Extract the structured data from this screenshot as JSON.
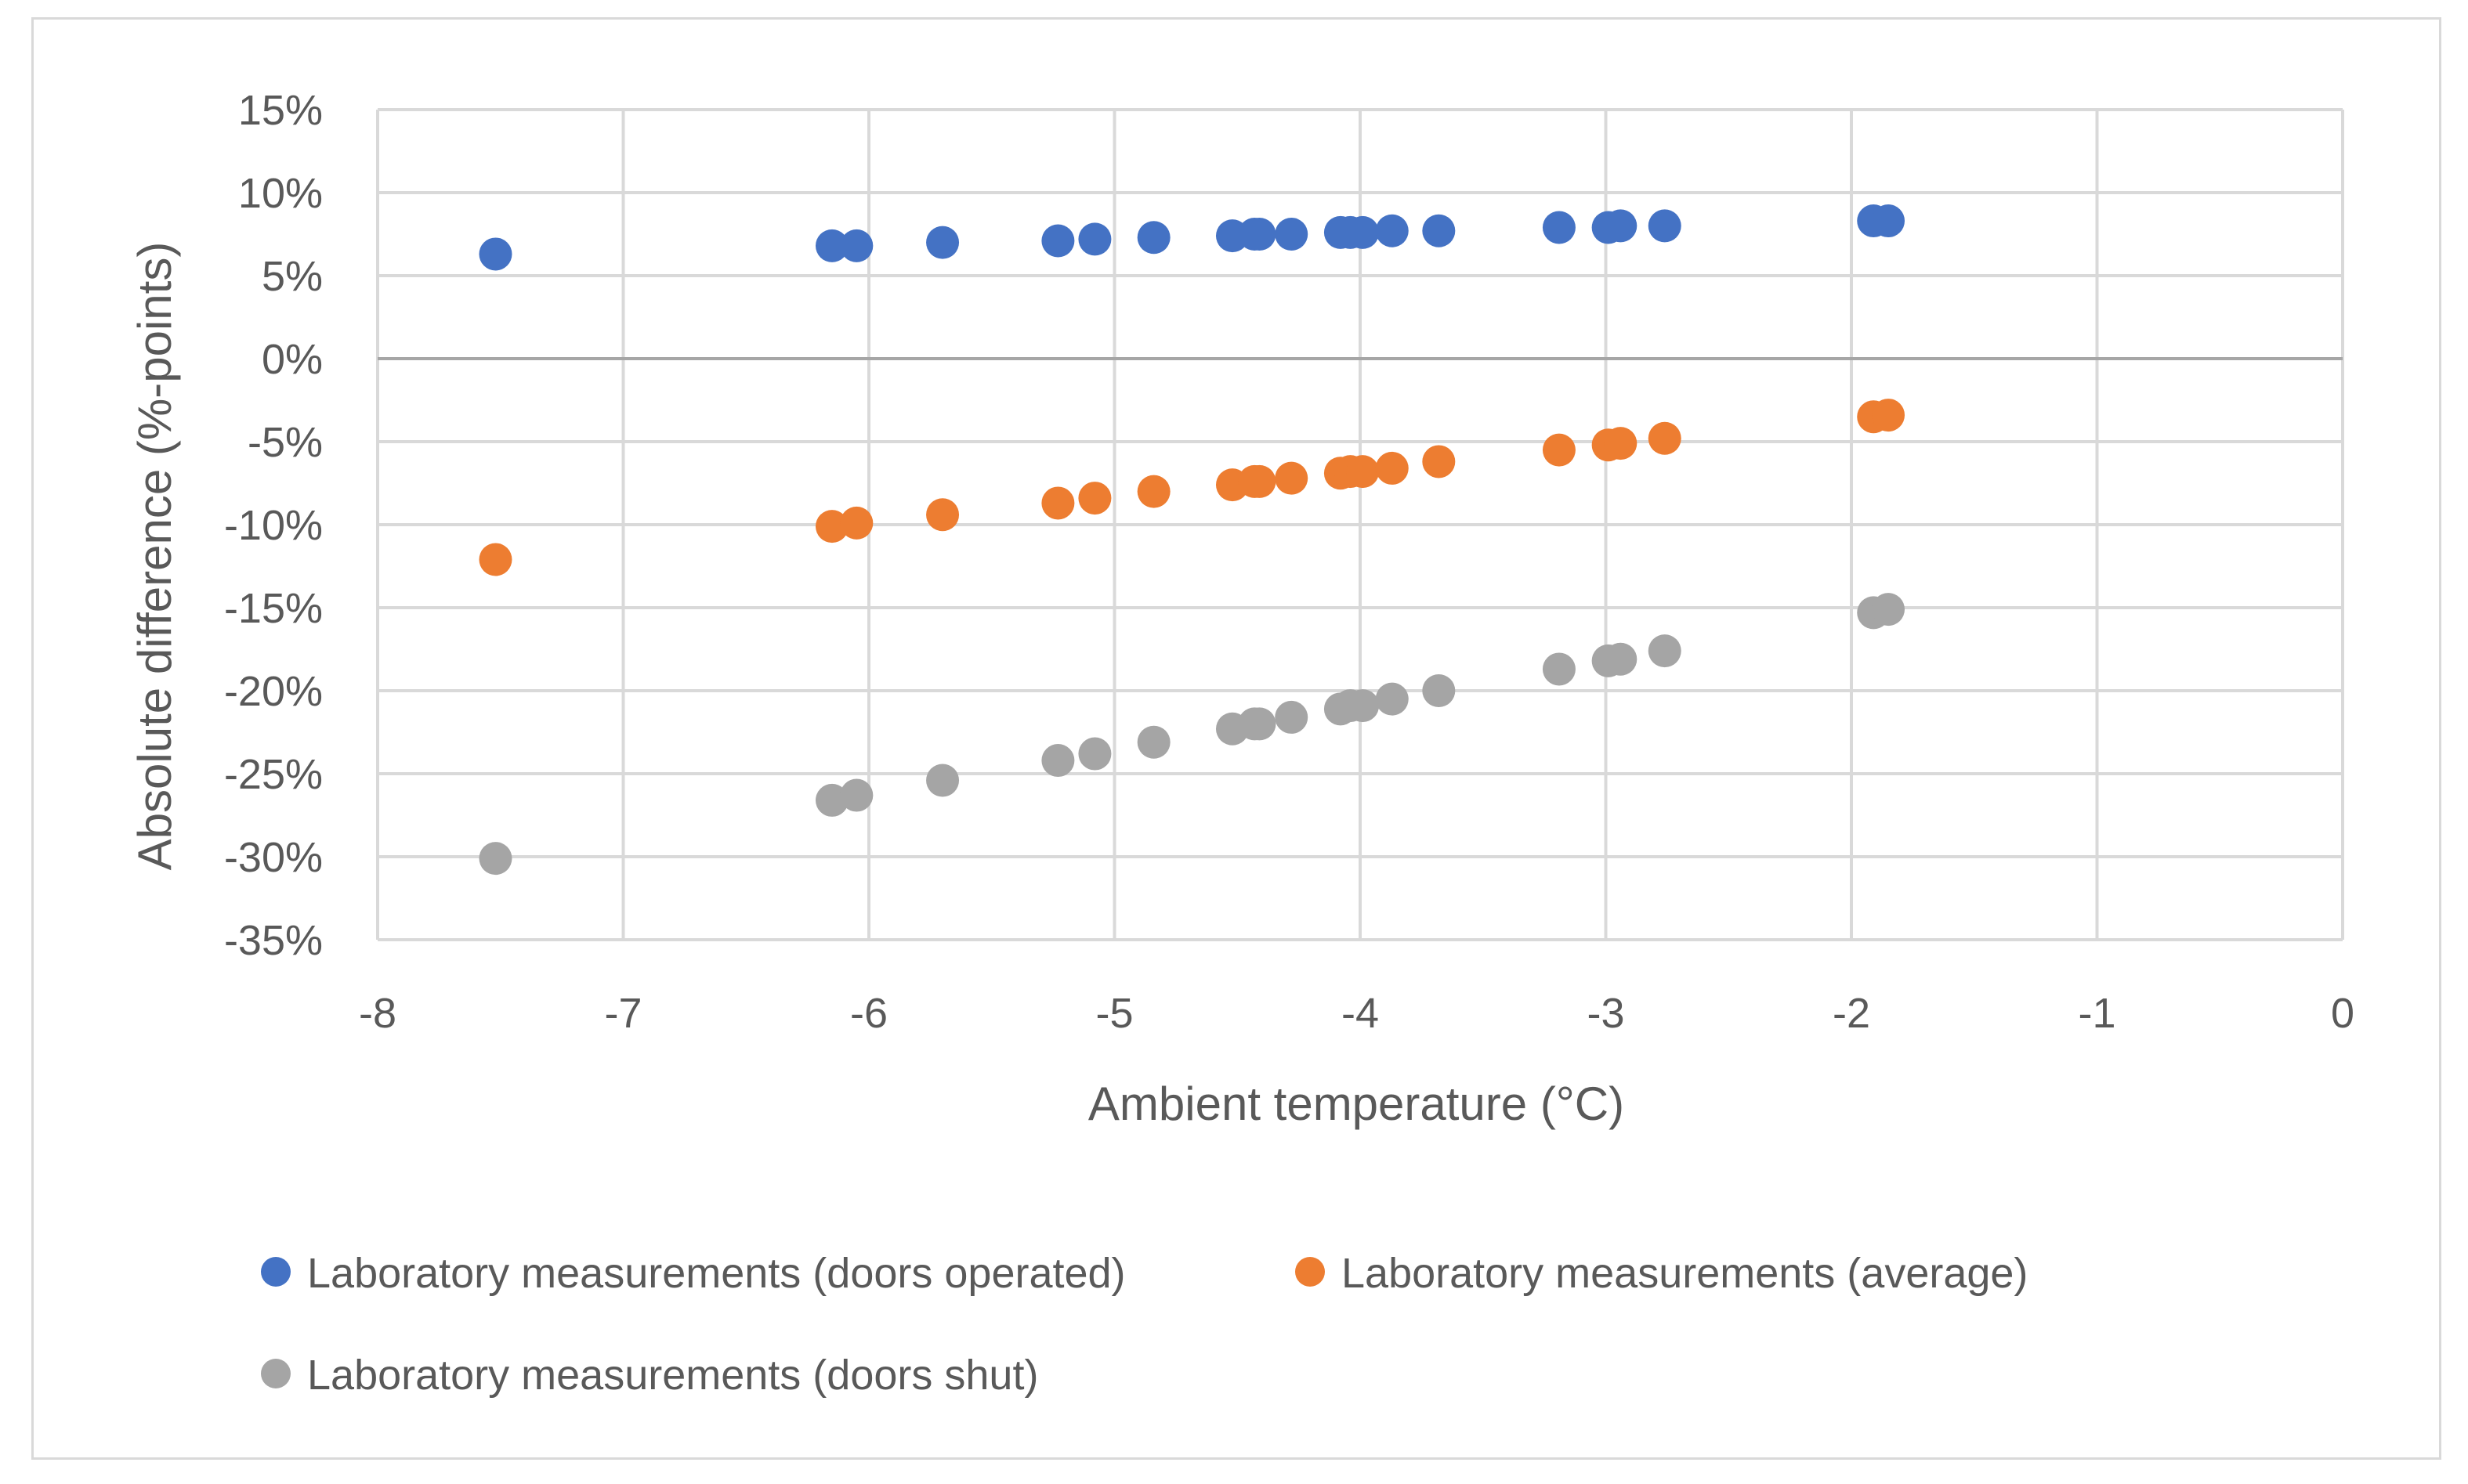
{
  "chart_data": {
    "type": "scatter",
    "title": "",
    "xlabel": "Ambient temperature (°C)",
    "ylabel": "Absolute difference (%-points)",
    "xlim": [
      -8,
      0
    ],
    "ylim": [
      -35,
      15
    ],
    "x_ticks": [
      -8,
      -7,
      -6,
      -5,
      -4,
      -3,
      -2,
      -1,
      0
    ],
    "x_tick_labels": [
      "-8",
      "-7",
      "-6",
      "-5",
      "-4",
      "-3",
      "-2",
      "-1",
      "0"
    ],
    "y_ticks": [
      15,
      10,
      5,
      0,
      -5,
      -10,
      -15,
      -20,
      -25,
      -30,
      -35
    ],
    "y_tick_labels": [
      "15%",
      "10%",
      "5%",
      "0%",
      "-5%",
      "-10%",
      "-15%",
      "-20%",
      "-25%",
      "-30%",
      "-35%"
    ],
    "grid": true,
    "legend_position": "bottom",
    "x": [
      -7.52,
      -6.15,
      -6.05,
      -5.7,
      -5.23,
      -5.08,
      -4.84,
      -4.52,
      -4.43,
      -4.41,
      -4.28,
      -4.08,
      -4.04,
      -3.99,
      -3.87,
      -3.68,
      -3.19,
      -2.99,
      -2.94,
      -2.76,
      -1.91,
      -1.85
    ],
    "series": [
      {
        "name": "Laboratory measurements (doors operated)",
        "color": "#4472c4",
        "values": [
          6.3,
          6.8,
          6.8,
          7.0,
          7.1,
          7.2,
          7.3,
          7.4,
          7.5,
          7.5,
          7.5,
          7.6,
          7.6,
          7.6,
          7.7,
          7.7,
          7.9,
          7.9,
          8.0,
          8.0,
          8.3,
          8.3
        ]
      },
      {
        "name": "Laboratory measurements (average)",
        "color": "#ed7d31",
        "values": [
          -12.1,
          -10.1,
          -9.9,
          -9.4,
          -8.7,
          -8.4,
          -8.0,
          -7.6,
          -7.4,
          -7.4,
          -7.2,
          -6.9,
          -6.8,
          -6.8,
          -6.6,
          -6.2,
          -5.5,
          -5.2,
          -5.1,
          -4.8,
          -3.5,
          -3.4
        ]
      },
      {
        "name": "Laboratory measurements (doors shut)",
        "color": "#a5a5a5",
        "values": [
          -30.1,
          -26.6,
          -26.3,
          -25.4,
          -24.2,
          -23.8,
          -23.1,
          -22.3,
          -22.0,
          -22.0,
          -21.6,
          -21.1,
          -20.9,
          -20.9,
          -20.5,
          -20.0,
          -18.7,
          -18.2,
          -18.1,
          -17.6,
          -15.3,
          -15.1
        ]
      }
    ]
  }
}
